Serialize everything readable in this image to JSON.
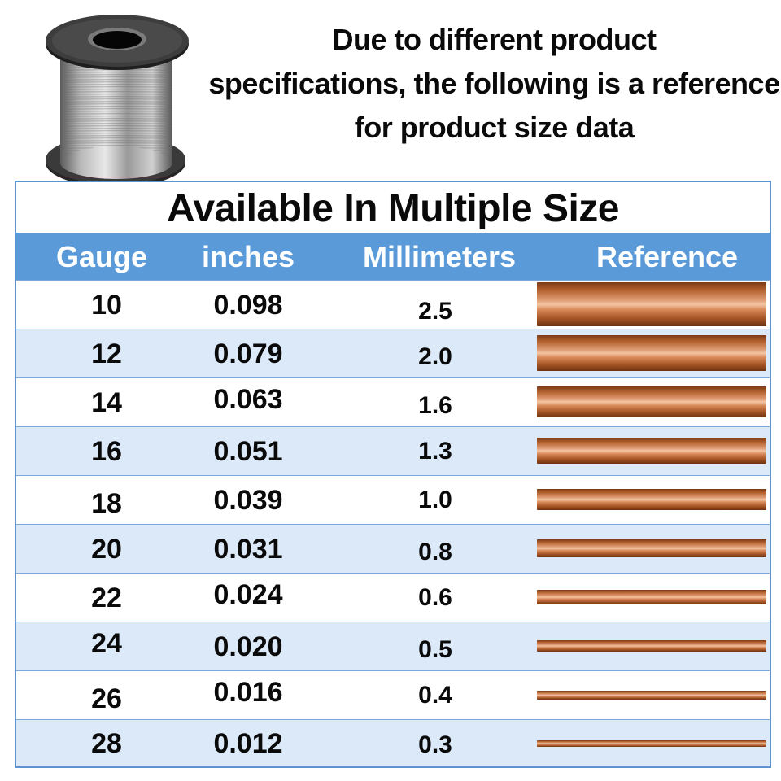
{
  "notice": {
    "line1": "Due to different product",
    "line2": "specifications, the following is a reference",
    "line3": "for product size data"
  },
  "table": {
    "title": "Available In Multiple Size",
    "headers": {
      "gauge": "Gauge",
      "inches": "inches",
      "millimeters": "Millimeters",
      "reference": "Reference"
    },
    "rows": [
      {
        "gauge": "10",
        "inches": "0.098",
        "mm": "2.5"
      },
      {
        "gauge": "12",
        "inches": "0.079",
        "mm": "2.0"
      },
      {
        "gauge": "14",
        "inches": "0.063",
        "mm": "1.6"
      },
      {
        "gauge": "16",
        "inches": "0.051",
        "mm": "1.3"
      },
      {
        "gauge": "18",
        "inches": "0.039",
        "mm": "1.0"
      },
      {
        "gauge": "20",
        "inches": "0.031",
        "mm": "0.8"
      },
      {
        "gauge": "22",
        "inches": "0.024",
        "mm": "0.6"
      },
      {
        "gauge": "24",
        "inches": "0.020",
        "mm": "0.5"
      },
      {
        "gauge": "26",
        "inches": "0.016",
        "mm": "0.4"
      },
      {
        "gauge": "28",
        "inches": "0.012",
        "mm": "0.3"
      }
    ]
  },
  "colors": {
    "header_bg": "#5b9ad8",
    "alt_row_bg": "#dbe9f8",
    "border": "#5b93d3",
    "copper": "#c87447"
  },
  "icons": {
    "spool": "wire-spool-image"
  }
}
